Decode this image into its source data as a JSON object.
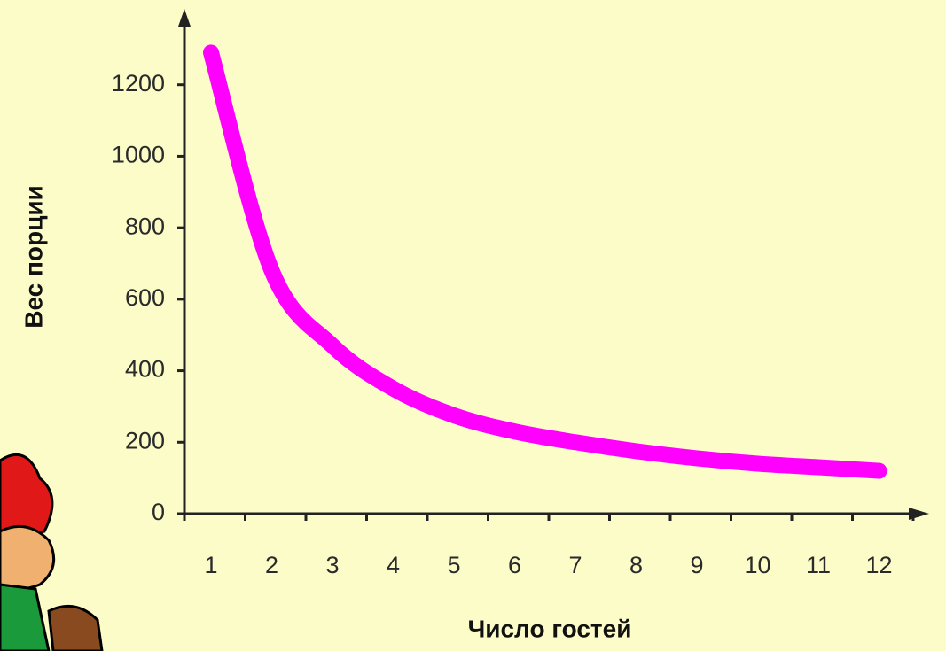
{
  "chart_data": {
    "type": "line",
    "x_label": "Число гостей",
    "y_label": "Вес порции",
    "categories": [
      "1",
      "2",
      "3",
      "4",
      "5",
      "6",
      "7",
      "8",
      "9",
      "10",
      "11",
      "12"
    ],
    "values": [
      1290,
      680,
      470,
      350,
      275,
      230,
      200,
      175,
      155,
      140,
      130,
      120
    ],
    "color": "#ff00ff",
    "ylim": [
      0,
      1400
    ],
    "yticks": [
      0,
      200,
      400,
      600,
      800,
      1000,
      1200
    ]
  }
}
